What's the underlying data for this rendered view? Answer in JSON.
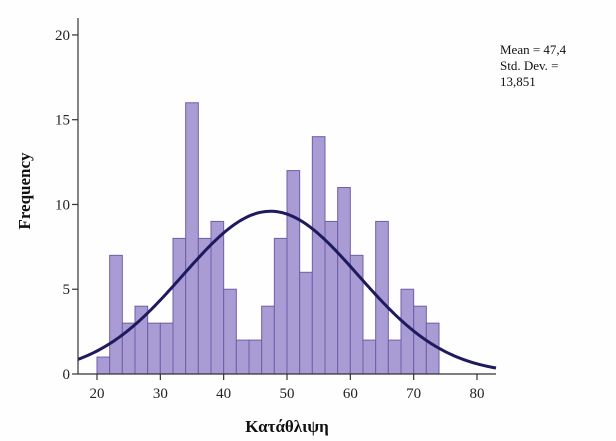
{
  "chart_data": {
    "type": "bar",
    "xlabel": "Κατάθλιψη",
    "ylabel": "Frequency",
    "xlim": [
      17,
      83
    ],
    "ylim": [
      0,
      21
    ],
    "x_ticks": [
      20,
      30,
      40,
      50,
      60,
      70,
      80
    ],
    "y_ticks": [
      0,
      5,
      10,
      15,
      20
    ],
    "bin_width": 2,
    "bins": [
      {
        "start": 20,
        "count": 1
      },
      {
        "start": 22,
        "count": 7
      },
      {
        "start": 24,
        "count": 3
      },
      {
        "start": 26,
        "count": 4
      },
      {
        "start": 28,
        "count": 3
      },
      {
        "start": 30,
        "count": 3
      },
      {
        "start": 32,
        "count": 8
      },
      {
        "start": 34,
        "count": 16
      },
      {
        "start": 36,
        "count": 8
      },
      {
        "start": 38,
        "count": 9
      },
      {
        "start": 40,
        "count": 5
      },
      {
        "start": 42,
        "count": 2
      },
      {
        "start": 44,
        "count": 2
      },
      {
        "start": 46,
        "count": 4
      },
      {
        "start": 48,
        "count": 8
      },
      {
        "start": 50,
        "count": 12
      },
      {
        "start": 52,
        "count": 6
      },
      {
        "start": 54,
        "count": 14
      },
      {
        "start": 56,
        "count": 9
      },
      {
        "start": 58,
        "count": 11
      },
      {
        "start": 60,
        "count": 7
      },
      {
        "start": 62,
        "count": 2
      },
      {
        "start": 64,
        "count": 9
      },
      {
        "start": 66,
        "count": 2
      },
      {
        "start": 68,
        "count": 5
      },
      {
        "start": 70,
        "count": 4
      },
      {
        "start": 72,
        "count": 3
      }
    ],
    "normal_curve": {
      "mean": 47.4,
      "sd": 13.851,
      "peak": 9.6
    },
    "stats": {
      "mean_line": "Mean = 47,4",
      "sd_line1": "Std. Dev. =",
      "sd_line2": "13,851"
    },
    "colors": {
      "bar_fill": "#a99bd3",
      "bar_stroke": "#6f5fa8",
      "curve": "#1f1a5e",
      "axis": "#333333"
    }
  }
}
